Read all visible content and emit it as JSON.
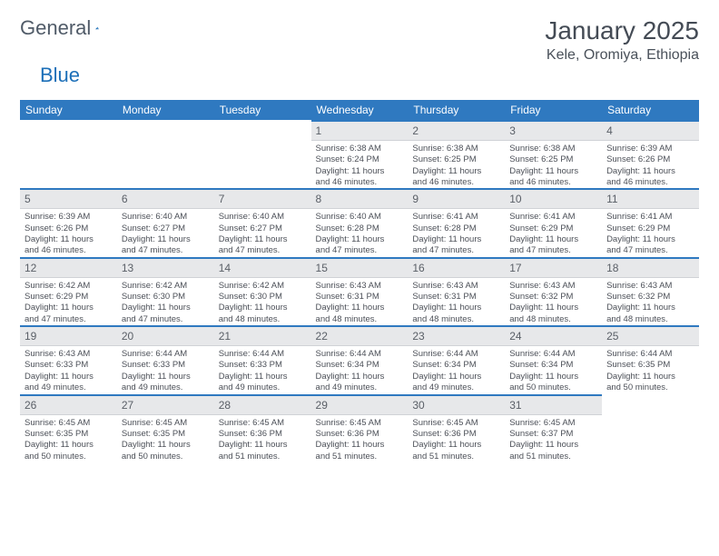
{
  "logo": {
    "text_a": "General",
    "text_b": "Blue"
  },
  "header": {
    "month": "January 2025",
    "location": "Kele, Oromiya, Ethiopia"
  },
  "colors": {
    "header_bg": "#2f79c0",
    "header_text": "#ffffff",
    "daynum_bg": "#e7e8ea",
    "daynum_border": "#2f79c0",
    "body_text": "#4c5058"
  },
  "weekdays": [
    "Sunday",
    "Monday",
    "Tuesday",
    "Wednesday",
    "Thursday",
    "Friday",
    "Saturday"
  ],
  "weeks": [
    [
      null,
      null,
      null,
      {
        "n": "1",
        "sr": "Sunrise: 6:38 AM",
        "ss": "Sunset: 6:24 PM",
        "dl1": "Daylight: 11 hours",
        "dl2": "and 46 minutes."
      },
      {
        "n": "2",
        "sr": "Sunrise: 6:38 AM",
        "ss": "Sunset: 6:25 PM",
        "dl1": "Daylight: 11 hours",
        "dl2": "and 46 minutes."
      },
      {
        "n": "3",
        "sr": "Sunrise: 6:38 AM",
        "ss": "Sunset: 6:25 PM",
        "dl1": "Daylight: 11 hours",
        "dl2": "and 46 minutes."
      },
      {
        "n": "4",
        "sr": "Sunrise: 6:39 AM",
        "ss": "Sunset: 6:26 PM",
        "dl1": "Daylight: 11 hours",
        "dl2": "and 46 minutes."
      }
    ],
    [
      {
        "n": "5",
        "sr": "Sunrise: 6:39 AM",
        "ss": "Sunset: 6:26 PM",
        "dl1": "Daylight: 11 hours",
        "dl2": "and 46 minutes."
      },
      {
        "n": "6",
        "sr": "Sunrise: 6:40 AM",
        "ss": "Sunset: 6:27 PM",
        "dl1": "Daylight: 11 hours",
        "dl2": "and 47 minutes."
      },
      {
        "n": "7",
        "sr": "Sunrise: 6:40 AM",
        "ss": "Sunset: 6:27 PM",
        "dl1": "Daylight: 11 hours",
        "dl2": "and 47 minutes."
      },
      {
        "n": "8",
        "sr": "Sunrise: 6:40 AM",
        "ss": "Sunset: 6:28 PM",
        "dl1": "Daylight: 11 hours",
        "dl2": "and 47 minutes."
      },
      {
        "n": "9",
        "sr": "Sunrise: 6:41 AM",
        "ss": "Sunset: 6:28 PM",
        "dl1": "Daylight: 11 hours",
        "dl2": "and 47 minutes."
      },
      {
        "n": "10",
        "sr": "Sunrise: 6:41 AM",
        "ss": "Sunset: 6:29 PM",
        "dl1": "Daylight: 11 hours",
        "dl2": "and 47 minutes."
      },
      {
        "n": "11",
        "sr": "Sunrise: 6:41 AM",
        "ss": "Sunset: 6:29 PM",
        "dl1": "Daylight: 11 hours",
        "dl2": "and 47 minutes."
      }
    ],
    [
      {
        "n": "12",
        "sr": "Sunrise: 6:42 AM",
        "ss": "Sunset: 6:29 PM",
        "dl1": "Daylight: 11 hours",
        "dl2": "and 47 minutes."
      },
      {
        "n": "13",
        "sr": "Sunrise: 6:42 AM",
        "ss": "Sunset: 6:30 PM",
        "dl1": "Daylight: 11 hours",
        "dl2": "and 47 minutes."
      },
      {
        "n": "14",
        "sr": "Sunrise: 6:42 AM",
        "ss": "Sunset: 6:30 PM",
        "dl1": "Daylight: 11 hours",
        "dl2": "and 48 minutes."
      },
      {
        "n": "15",
        "sr": "Sunrise: 6:43 AM",
        "ss": "Sunset: 6:31 PM",
        "dl1": "Daylight: 11 hours",
        "dl2": "and 48 minutes."
      },
      {
        "n": "16",
        "sr": "Sunrise: 6:43 AM",
        "ss": "Sunset: 6:31 PM",
        "dl1": "Daylight: 11 hours",
        "dl2": "and 48 minutes."
      },
      {
        "n": "17",
        "sr": "Sunrise: 6:43 AM",
        "ss": "Sunset: 6:32 PM",
        "dl1": "Daylight: 11 hours",
        "dl2": "and 48 minutes."
      },
      {
        "n": "18",
        "sr": "Sunrise: 6:43 AM",
        "ss": "Sunset: 6:32 PM",
        "dl1": "Daylight: 11 hours",
        "dl2": "and 48 minutes."
      }
    ],
    [
      {
        "n": "19",
        "sr": "Sunrise: 6:43 AM",
        "ss": "Sunset: 6:33 PM",
        "dl1": "Daylight: 11 hours",
        "dl2": "and 49 minutes."
      },
      {
        "n": "20",
        "sr": "Sunrise: 6:44 AM",
        "ss": "Sunset: 6:33 PM",
        "dl1": "Daylight: 11 hours",
        "dl2": "and 49 minutes."
      },
      {
        "n": "21",
        "sr": "Sunrise: 6:44 AM",
        "ss": "Sunset: 6:33 PM",
        "dl1": "Daylight: 11 hours",
        "dl2": "and 49 minutes."
      },
      {
        "n": "22",
        "sr": "Sunrise: 6:44 AM",
        "ss": "Sunset: 6:34 PM",
        "dl1": "Daylight: 11 hours",
        "dl2": "and 49 minutes."
      },
      {
        "n": "23",
        "sr": "Sunrise: 6:44 AM",
        "ss": "Sunset: 6:34 PM",
        "dl1": "Daylight: 11 hours",
        "dl2": "and 49 minutes."
      },
      {
        "n": "24",
        "sr": "Sunrise: 6:44 AM",
        "ss": "Sunset: 6:34 PM",
        "dl1": "Daylight: 11 hours",
        "dl2": "and 50 minutes."
      },
      {
        "n": "25",
        "sr": "Sunrise: 6:44 AM",
        "ss": "Sunset: 6:35 PM",
        "dl1": "Daylight: 11 hours",
        "dl2": "and 50 minutes."
      }
    ],
    [
      {
        "n": "26",
        "sr": "Sunrise: 6:45 AM",
        "ss": "Sunset: 6:35 PM",
        "dl1": "Daylight: 11 hours",
        "dl2": "and 50 minutes."
      },
      {
        "n": "27",
        "sr": "Sunrise: 6:45 AM",
        "ss": "Sunset: 6:35 PM",
        "dl1": "Daylight: 11 hours",
        "dl2": "and 50 minutes."
      },
      {
        "n": "28",
        "sr": "Sunrise: 6:45 AM",
        "ss": "Sunset: 6:36 PM",
        "dl1": "Daylight: 11 hours",
        "dl2": "and 51 minutes."
      },
      {
        "n": "29",
        "sr": "Sunrise: 6:45 AM",
        "ss": "Sunset: 6:36 PM",
        "dl1": "Daylight: 11 hours",
        "dl2": "and 51 minutes."
      },
      {
        "n": "30",
        "sr": "Sunrise: 6:45 AM",
        "ss": "Sunset: 6:36 PM",
        "dl1": "Daylight: 11 hours",
        "dl2": "and 51 minutes."
      },
      {
        "n": "31",
        "sr": "Sunrise: 6:45 AM",
        "ss": "Sunset: 6:37 PM",
        "dl1": "Daylight: 11 hours",
        "dl2": "and 51 minutes."
      },
      null
    ]
  ]
}
